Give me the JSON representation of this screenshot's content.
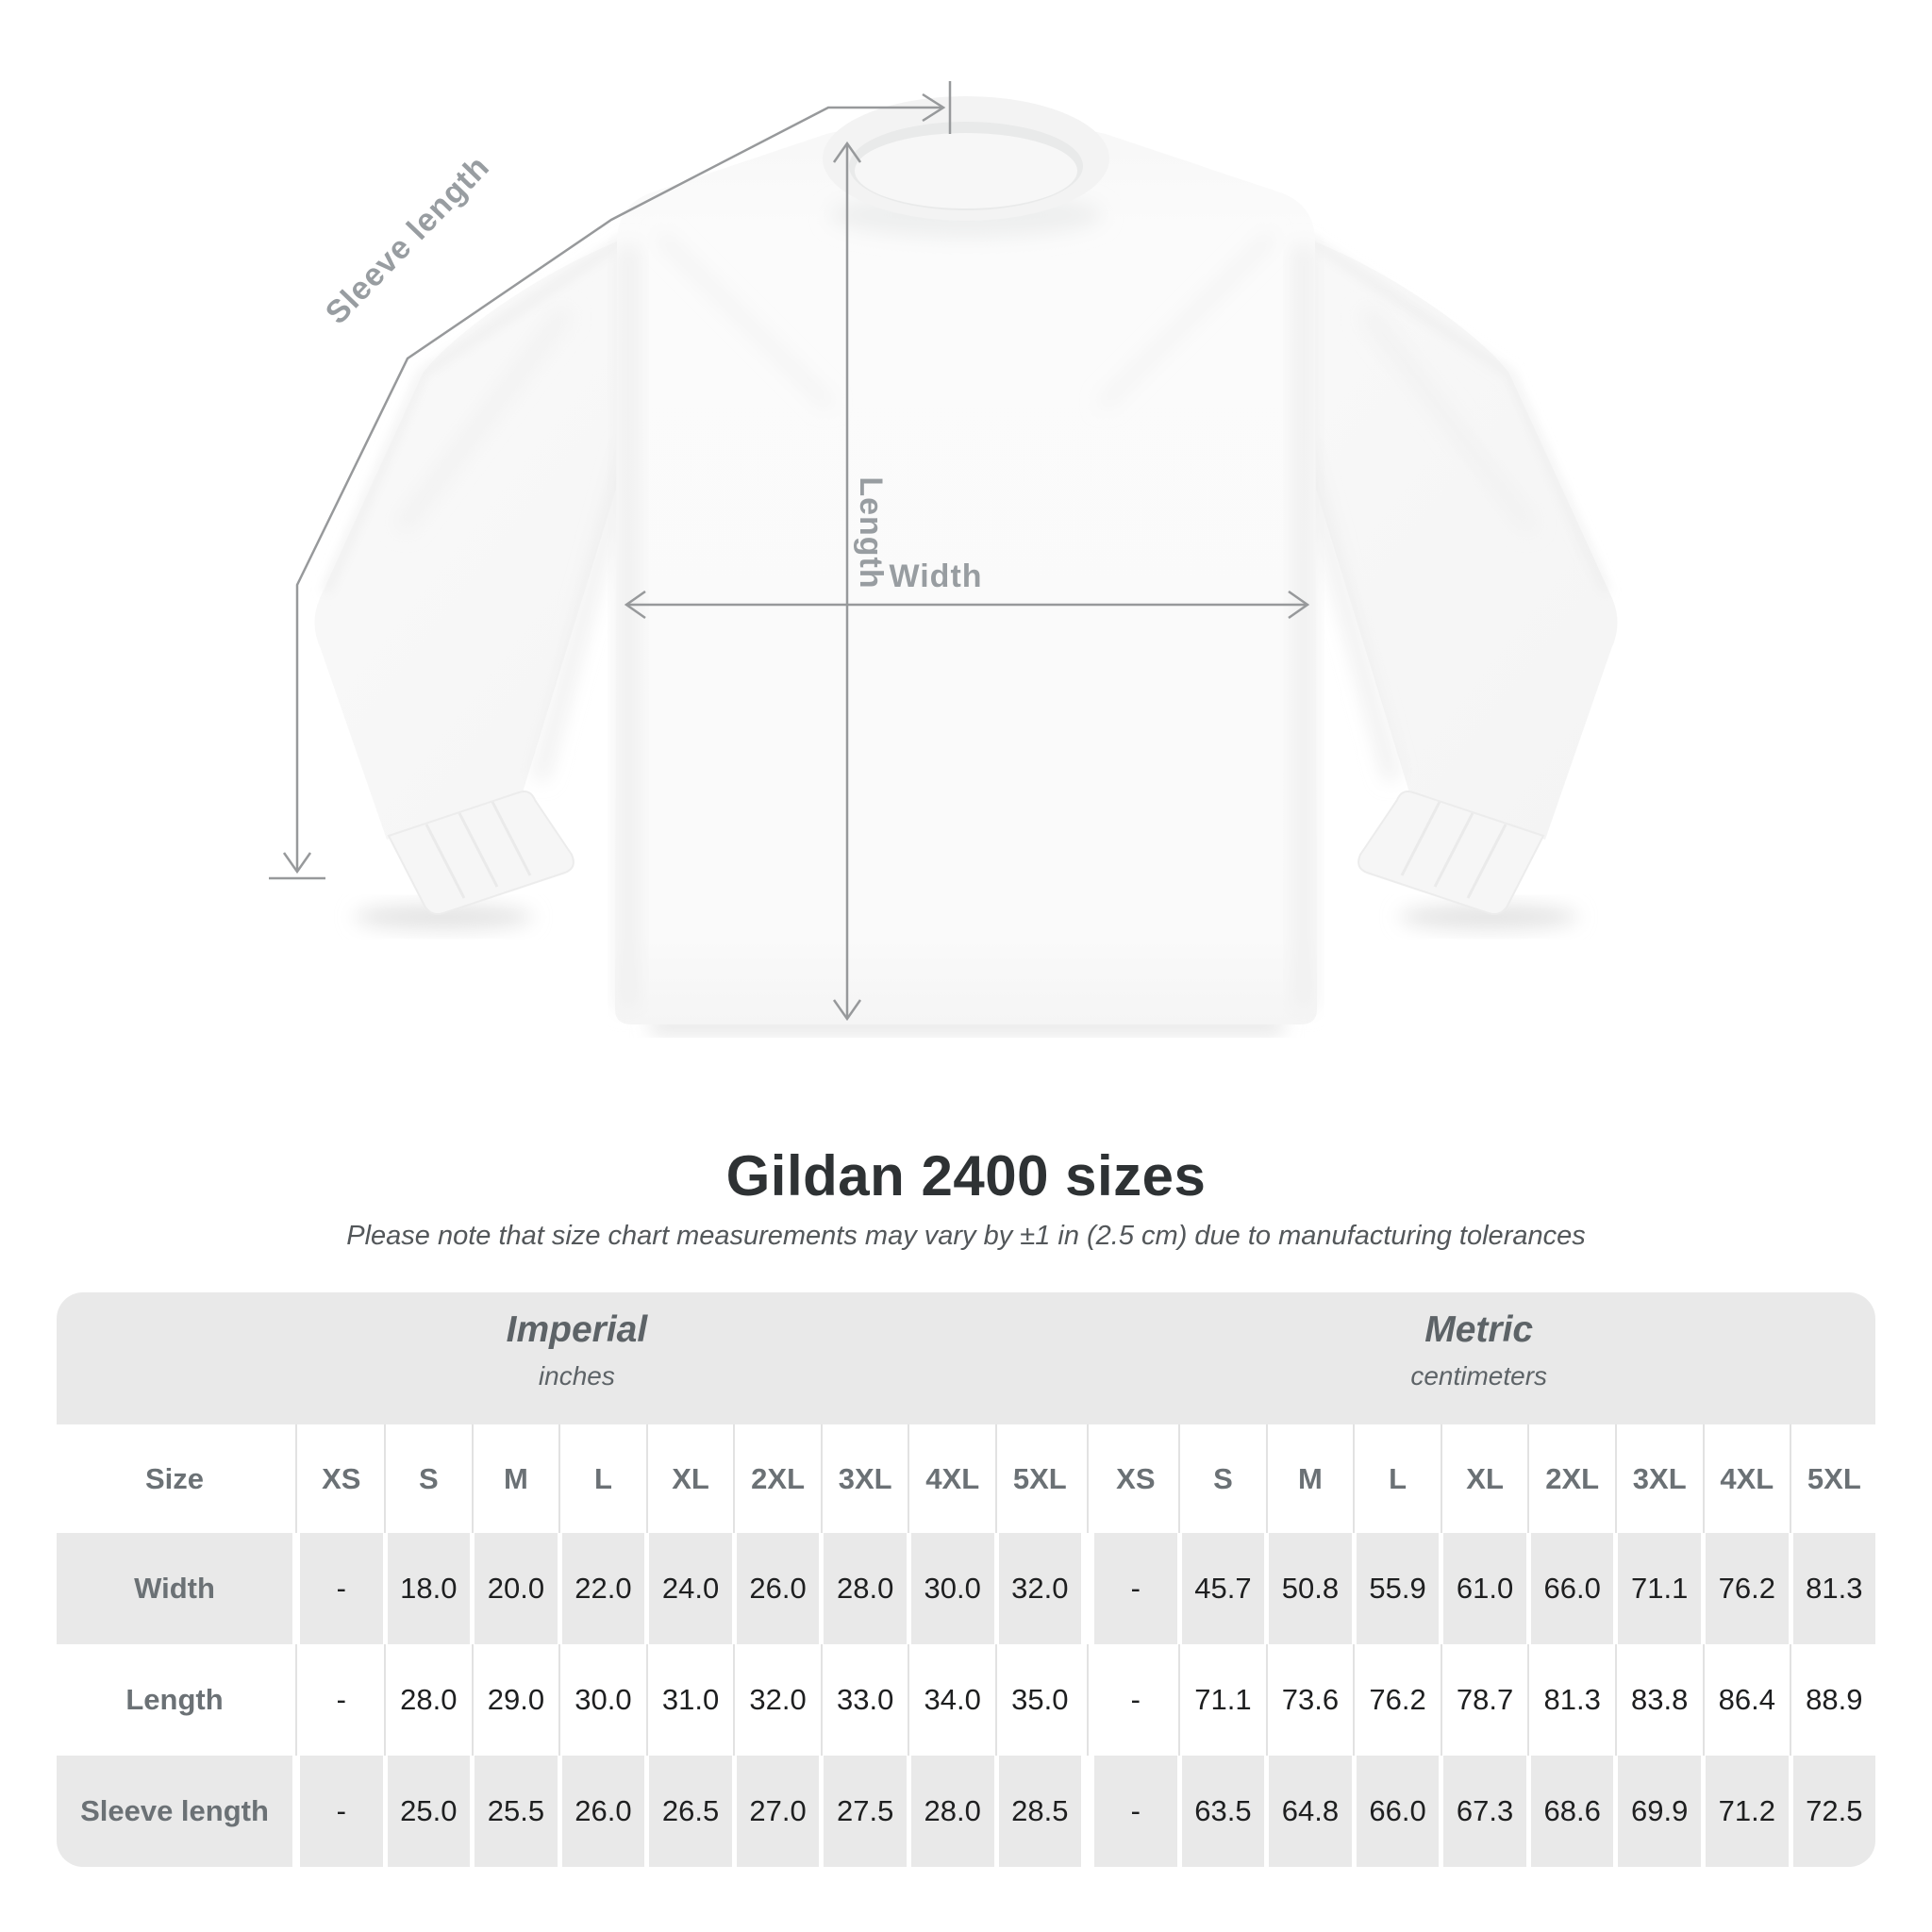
{
  "diagram": {
    "sleeve_length_label": "Sleeve length",
    "length_label": "Length",
    "width_label": "Width"
  },
  "heading": {
    "title": "Gildan 2400 sizes",
    "subtitle": "Please note that size chart measurements may vary by ±1 in (2.5 cm) due to manufacturing tolerances"
  },
  "size_table": {
    "unit_groups": [
      {
        "name": "Imperial",
        "unit": "inches"
      },
      {
        "name": "Metric",
        "unit": "centimeters"
      }
    ],
    "size_column_header": "Size",
    "size_headers": [
      "XS",
      "S",
      "M",
      "L",
      "XL",
      "2XL",
      "3XL",
      "4XL",
      "5XL",
      "XS",
      "S",
      "M",
      "L",
      "XL",
      "2XL",
      "3XL",
      "4XL",
      "5XL"
    ],
    "rows": [
      {
        "label": "Width",
        "values": [
          "-",
          "18.0",
          "20.0",
          "22.0",
          "24.0",
          "26.0",
          "28.0",
          "30.0",
          "32.0",
          "-",
          "45.7",
          "50.8",
          "55.9",
          "61.0",
          "66.0",
          "71.1",
          "76.2",
          "81.3"
        ]
      },
      {
        "label": "Length",
        "values": [
          "-",
          "28.0",
          "29.0",
          "30.0",
          "31.0",
          "32.0",
          "33.0",
          "34.0",
          "35.0",
          "-",
          "71.1",
          "73.6",
          "76.2",
          "78.7",
          "81.3",
          "83.8",
          "86.4",
          "88.9"
        ]
      },
      {
        "label": "Sleeve length",
        "values": [
          "-",
          "25.0",
          "25.5",
          "26.0",
          "26.5",
          "27.0",
          "27.5",
          "28.0",
          "28.5",
          "-",
          "63.5",
          "64.8",
          "66.0",
          "67.3",
          "68.6",
          "69.9",
          "71.2",
          "72.5"
        ]
      }
    ]
  },
  "colors": {
    "table_gray": "#e9e9e9",
    "header_text": "#6b7175",
    "value_text": "#1e1f20",
    "title_text": "#2e3234",
    "subtitle_text": "#53575a",
    "measure_line": "#97999b",
    "measure_label": "#989da1"
  },
  "chart_data": {
    "type": "table",
    "title": "Gildan 2400 sizes",
    "note": "Please note that size chart measurements may vary by ±1 in (2.5 cm) due to manufacturing tolerances",
    "size_columns": [
      "XS",
      "S",
      "M",
      "L",
      "XL",
      "2XL",
      "3XL",
      "4XL",
      "5XL"
    ],
    "unit_systems": [
      {
        "system": "Imperial",
        "unit": "inches"
      },
      {
        "system": "Metric",
        "unit": "centimeters"
      }
    ],
    "imperial_inches": {
      "Width": [
        null,
        18.0,
        20.0,
        22.0,
        24.0,
        26.0,
        28.0,
        30.0,
        32.0
      ],
      "Length": [
        null,
        28.0,
        29.0,
        30.0,
        31.0,
        32.0,
        33.0,
        34.0,
        35.0
      ],
      "Sleeve length": [
        null,
        25.0,
        25.5,
        26.0,
        26.5,
        27.0,
        27.5,
        28.0,
        28.5
      ]
    },
    "metric_centimeters": {
      "Width": [
        null,
        45.7,
        50.8,
        55.9,
        61.0,
        66.0,
        71.1,
        76.2,
        81.3
      ],
      "Length": [
        null,
        71.1,
        73.6,
        76.2,
        78.7,
        81.3,
        83.8,
        86.4,
        88.9
      ],
      "Sleeve length": [
        null,
        63.5,
        64.8,
        66.0,
        67.3,
        68.6,
        69.9,
        71.2,
        72.5
      ]
    }
  }
}
